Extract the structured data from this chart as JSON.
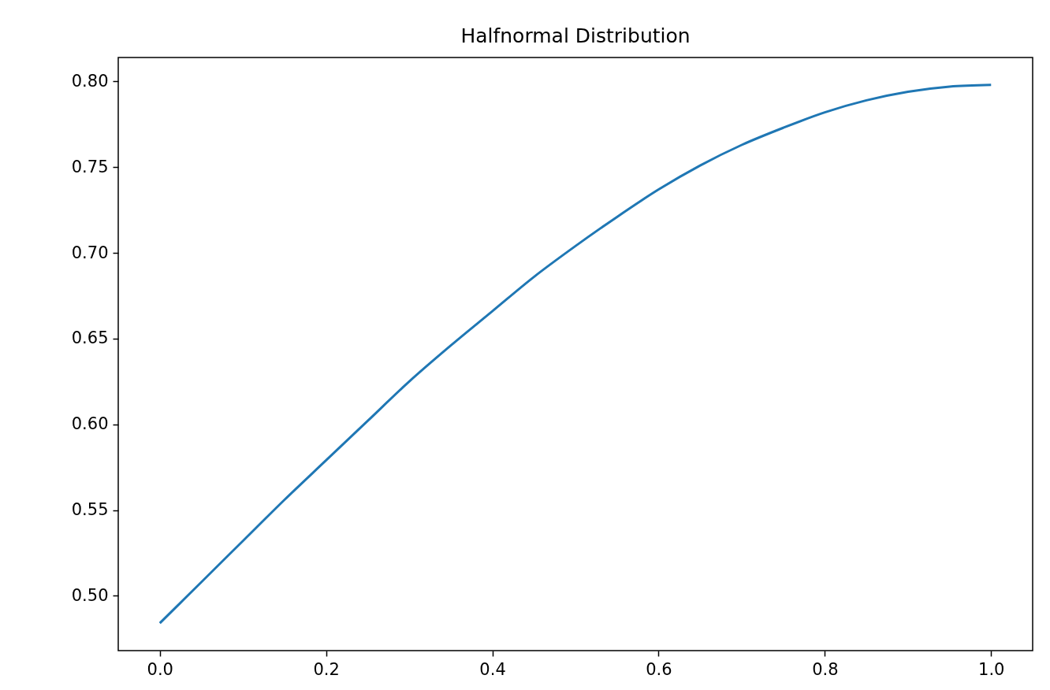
{
  "chart_data": {
    "type": "line",
    "title": "Halfnormal Distribution",
    "x": [
      0,
      0.05,
      0.1,
      0.15,
      0.2,
      0.25,
      0.3,
      0.35,
      0.4,
      0.45,
      0.5,
      0.55,
      0.6,
      0.65,
      0.7,
      0.75,
      0.8,
      0.85,
      0.9,
      0.95,
      1.0
    ],
    "series": [
      {
        "color": "#1f77b4",
        "values": [
          0.484,
          0.508,
          0.532,
          0.556,
          0.579,
          0.602,
          0.625,
          0.646,
          0.666,
          0.686,
          0.704,
          0.721,
          0.737,
          0.751,
          0.763,
          0.773,
          0.782,
          0.789,
          0.794,
          0.797,
          0.798
        ]
      }
    ],
    "xlim": [
      -0.05,
      1.05
    ],
    "xticks": [
      {
        "value": 0,
        "label": "0.0"
      },
      0.2,
      0.4,
      0.6,
      0.8,
      {
        "value": 1,
        "label": "1.0"
      }
    ],
    "ylim": [
      0.468,
      0.814
    ],
    "yticks": [
      {
        "value": 0.5,
        "label": "0.50"
      },
      0.55,
      {
        "value": 0.6,
        "label": "0.60"
      },
      0.65,
      {
        "value": 0.7,
        "label": "0.70"
      },
      0.75,
      {
        "value": 0.8,
        "label": "0.80"
      }
    ],
    "grid": false,
    "marker": "none",
    "line_style": "solid"
  }
}
